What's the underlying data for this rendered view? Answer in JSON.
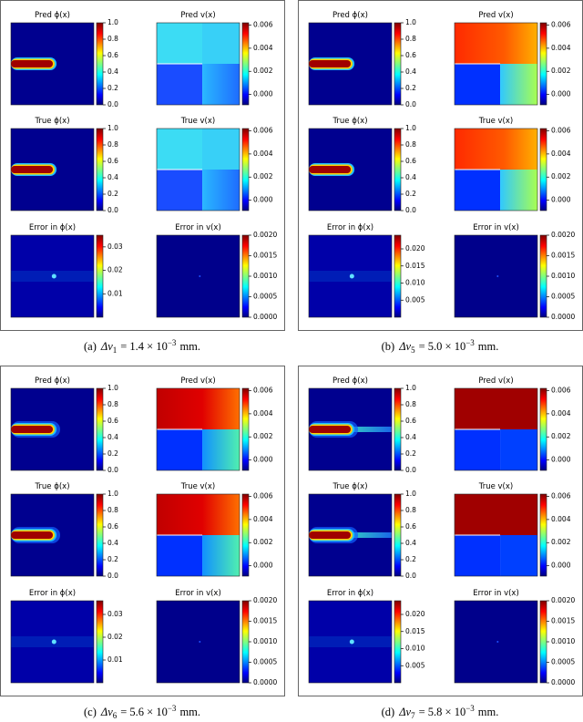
{
  "panels": [
    {
      "caption": {
        "label": "(a)",
        "symbol": "Δv",
        "subscript": "1",
        "relation": "= 1.4 × 10",
        "exponent": "−3",
        "unit": "mm."
      },
      "plots": [
        {
          "title": "Pred ϕ(x)",
          "colorbar": {
            "lim": [
              0,
              1
            ],
            "ticks": [
              {
                "value": 0,
                "label": "0.0"
              },
              0.2,
              0.4,
              0.6,
              0.8,
              {
                "value": 1,
                "label": "1.0"
              }
            ]
          }
        },
        {
          "title": "Pred v(x)",
          "colorbar": {
            "lim": [
              -0.0009,
              0.0062
            ],
            "ticks": [
              {
                "value": 0,
                "label": "0.000"
              },
              0.002,
              0.004,
              0.006
            ]
          }
        },
        {
          "title": "True ϕ(x)",
          "colorbar": {
            "lim": [
              0,
              1
            ],
            "ticks": [
              {
                "value": 0,
                "label": "0.0"
              },
              0.2,
              0.4,
              0.6,
              0.8,
              {
                "value": 1,
                "label": "1.0"
              }
            ]
          }
        },
        {
          "title": "True v(x)",
          "colorbar": {
            "lim": [
              -0.0009,
              0.0062
            ],
            "ticks": [
              {
                "value": 0,
                "label": "0.000"
              },
              0.002,
              0.004,
              0.006
            ]
          }
        },
        {
          "title": "Error in ϕ(x)",
          "colorbar": {
            "lim": [
              0,
              0.035
            ],
            "ticks": [
              0.01,
              0.02,
              0.03
            ]
          }
        },
        {
          "title": "Error in v(x)",
          "colorbar": {
            "lim": [
              0,
              0.002
            ],
            "ticks": [
              {
                "value": 0,
                "label": "0.0000"
              },
              0.0005,
              {
                "value": 0.001,
                "label": "0.0010"
              },
              0.0015,
              {
                "value": 0.002,
                "label": "0.0020"
              }
            ]
          }
        }
      ]
    },
    {
      "caption": {
        "label": "(b)",
        "symbol": "Δv",
        "subscript": "5",
        "relation": "= 5.0 × 10",
        "exponent": "−3",
        "unit": "mm."
      },
      "plots": [
        {
          "title": "Pred ϕ(x)",
          "colorbar": {
            "lim": [
              0,
              1
            ],
            "ticks": [
              {
                "value": 0,
                "label": "0.0"
              },
              0.2,
              0.4,
              0.6,
              0.8,
              {
                "value": 1,
                "label": "1.0"
              }
            ]
          }
        },
        {
          "title": "Pred v(x)",
          "colorbar": {
            "lim": [
              -0.0009,
              0.0062
            ],
            "ticks": [
              {
                "value": 0,
                "label": "0.000"
              },
              0.002,
              0.004,
              0.006
            ]
          }
        },
        {
          "title": "True ϕ(x)",
          "colorbar": {
            "lim": [
              0,
              1
            ],
            "ticks": [
              {
                "value": 0,
                "label": "0.0"
              },
              0.2,
              0.4,
              0.6,
              0.8,
              {
                "value": 1,
                "label": "1.0"
              }
            ]
          }
        },
        {
          "title": "True v(x)",
          "colorbar": {
            "lim": [
              -0.0009,
              0.0062
            ],
            "ticks": [
              {
                "value": 0,
                "label": "0.000"
              },
              0.002,
              0.004,
              0.006
            ]
          }
        },
        {
          "title": "Error in ϕ(x)",
          "colorbar": {
            "lim": [
              0,
              0.024
            ],
            "ticks": [
              0.005,
              {
                "value": 0.01,
                "label": "0.010"
              },
              0.015,
              {
                "value": 0.02,
                "label": "0.020"
              }
            ]
          }
        },
        {
          "title": "Error in v(x)",
          "colorbar": {
            "lim": [
              0,
              0.002
            ],
            "ticks": [
              {
                "value": 0,
                "label": "0.0000"
              },
              0.0005,
              {
                "value": 0.001,
                "label": "0.0010"
              },
              0.0015,
              {
                "value": 0.002,
                "label": "0.0020"
              }
            ]
          }
        }
      ]
    },
    {
      "caption": {
        "label": "(c)",
        "symbol": "Δv",
        "subscript": "6",
        "relation": "= 5.6 × 10",
        "exponent": "−3",
        "unit": "mm."
      },
      "plots": [
        {
          "title": "Pred ϕ(x)",
          "colorbar": {
            "lim": [
              0,
              1
            ],
            "ticks": [
              {
                "value": 0,
                "label": "0.0"
              },
              0.2,
              0.4,
              0.6,
              0.8,
              {
                "value": 1,
                "label": "1.0"
              }
            ]
          }
        },
        {
          "title": "Pred v(x)",
          "colorbar": {
            "lim": [
              -0.0009,
              0.0062
            ],
            "ticks": [
              {
                "value": 0,
                "label": "0.000"
              },
              0.002,
              0.004,
              0.006
            ]
          }
        },
        {
          "title": "True ϕ(x)",
          "colorbar": {
            "lim": [
              0,
              1
            ],
            "ticks": [
              {
                "value": 0,
                "label": "0.0"
              },
              0.2,
              0.4,
              0.6,
              0.8,
              {
                "value": 1,
                "label": "1.0"
              }
            ]
          }
        },
        {
          "title": "True v(x)",
          "colorbar": {
            "lim": [
              -0.0009,
              0.0062
            ],
            "ticks": [
              {
                "value": 0,
                "label": "0.000"
              },
              0.002,
              0.004,
              0.006
            ]
          }
        },
        {
          "title": "Error in ϕ(x)",
          "colorbar": {
            "lim": [
              0,
              0.036
            ],
            "ticks": [
              0.01,
              0.02,
              0.03
            ]
          }
        },
        {
          "title": "Error in v(x)",
          "colorbar": {
            "lim": [
              0,
              0.002
            ],
            "ticks": [
              {
                "value": 0,
                "label": "0.0000"
              },
              0.0005,
              {
                "value": 0.001,
                "label": "0.0010"
              },
              0.0015,
              {
                "value": 0.002,
                "label": "0.0020"
              }
            ]
          }
        }
      ]
    },
    {
      "caption": {
        "label": "(d)",
        "symbol": "Δv",
        "subscript": "7",
        "relation": "= 5.8 × 10",
        "exponent": "−3",
        "unit": "mm."
      },
      "plots": [
        {
          "title": "Pred ϕ(x)",
          "colorbar": {
            "lim": [
              0,
              1
            ],
            "ticks": [
              {
                "value": 0,
                "label": "0.0"
              },
              0.2,
              0.4,
              0.6,
              0.8,
              {
                "value": 1,
                "label": "1.0"
              }
            ]
          }
        },
        {
          "title": "Pred v(x)",
          "colorbar": {
            "lim": [
              -0.0009,
              0.0062
            ],
            "ticks": [
              {
                "value": 0,
                "label": "0.000"
              },
              0.002,
              0.004,
              0.006
            ]
          }
        },
        {
          "title": "True ϕ(x)",
          "colorbar": {
            "lim": [
              0,
              1
            ],
            "ticks": [
              {
                "value": 0,
                "label": "0.0"
              },
              0.2,
              0.4,
              0.6,
              0.8,
              {
                "value": 1,
                "label": "1.0"
              }
            ]
          }
        },
        {
          "title": "True v(x)",
          "colorbar": {
            "lim": [
              -0.0009,
              0.0062
            ],
            "ticks": [
              {
                "value": 0,
                "label": "0.000"
              },
              0.002,
              0.004,
              0.006
            ]
          }
        },
        {
          "title": "Error in ϕ(x)",
          "colorbar": {
            "lim": [
              0,
              0.024
            ],
            "ticks": [
              0.005,
              {
                "value": 0.01,
                "label": "0.010"
              },
              0.015,
              {
                "value": 0.02,
                "label": "0.020"
              }
            ]
          }
        },
        {
          "title": "Error in v(x)",
          "colorbar": {
            "lim": [
              0,
              0.002
            ],
            "ticks": [
              {
                "value": 0,
                "label": "0.0000"
              },
              0.0005,
              {
                "value": 0.001,
                "label": "0.0010"
              },
              0.0015,
              {
                "value": 0.002,
                "label": "0.0020"
              }
            ]
          }
        }
      ]
    }
  ]
}
